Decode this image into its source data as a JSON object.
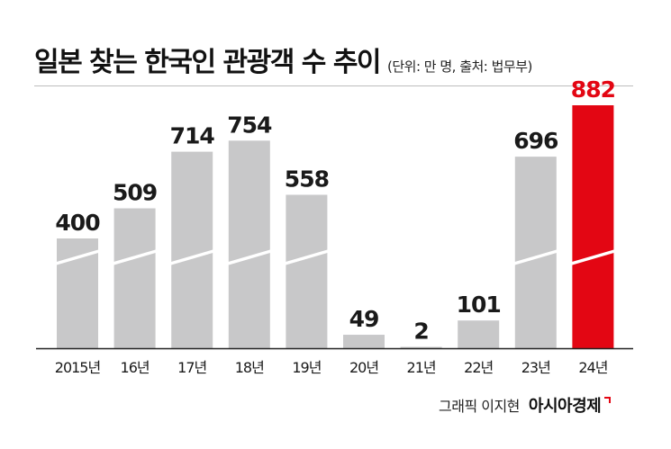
{
  "header": {
    "title": "일본 찾는 한국인 관광객 수 추이",
    "subtitle": "(단위: 만 명, 출처: 법무부)"
  },
  "credit": {
    "text": "그래픽 이지현",
    "logo": "아시아경제",
    "logo_icon": "corner-mark-icon"
  },
  "colors": {
    "bar": "#c8c8c9",
    "highlight": "#e30613",
    "label": "#1a1a1a",
    "axis": "#222222"
  },
  "chart_data": {
    "type": "bar",
    "title": "일본 찾는 한국인 관광객 수 추이",
    "subtitle": "(단위: 만 명, 출처: 법무부)",
    "categories": [
      "2015년",
      "16년",
      "17년",
      "18년",
      "19년",
      "20년",
      "21년",
      "22년",
      "23년",
      "24년"
    ],
    "values": [
      400,
      509,
      714,
      754,
      558,
      49,
      2,
      101,
      696,
      882
    ],
    "highlight_index": 9,
    "axis_break": true,
    "ylim": [
      0,
      882
    ],
    "grid": false,
    "legend": "none"
  }
}
